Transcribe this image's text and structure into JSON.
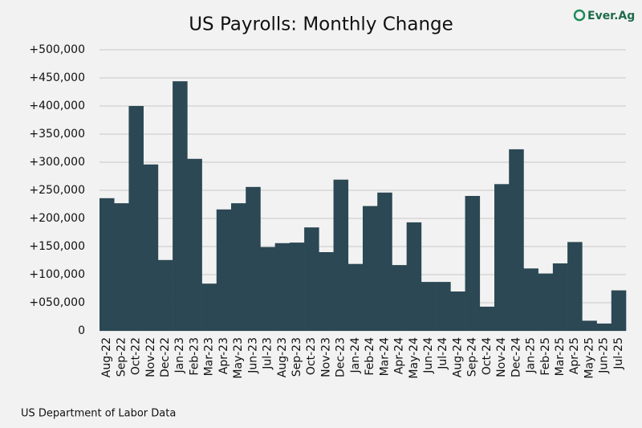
{
  "chart_data": {
    "type": "bar",
    "title": "US Payrolls: Monthly Change",
    "source": "US Department of Labor Data",
    "logo": "Ever.Ag",
    "categories": [
      "Aug-22",
      "Sep-22",
      "Oct-22",
      "Nov-22",
      "Dec-22",
      "Jan-23",
      "Feb-23",
      "Mar-23",
      "Apr-23",
      "May-23",
      "Jun-23",
      "Jul-23",
      "Aug-23",
      "Sep-23",
      "Oct-23",
      "Nov-23",
      "Dec-23",
      "Jan-24",
      "Feb-24",
      "Mar-24",
      "Apr-24",
      "May-24",
      "Jun-24",
      "Jul-24",
      "Aug-24",
      "Sep-24",
      "Oct-24",
      "Nov-24",
      "Dec-24",
      "Jan-25",
      "Feb-25",
      "Mar-25",
      "Apr-25",
      "May-25",
      "Jun-25",
      "Jul-25"
    ],
    "values": [
      236000,
      227000,
      400000,
      296000,
      126000,
      444000,
      306000,
      84000,
      216000,
      227000,
      256000,
      149000,
      156000,
      157000,
      184000,
      140000,
      269000,
      119000,
      222000,
      246000,
      117000,
      193000,
      87000,
      87000,
      70000,
      240000,
      43000,
      261000,
      323000,
      111000,
      102000,
      120000,
      158000,
      18000,
      13000,
      72000
    ],
    "color": "#2b4854",
    "ylim": [
      0,
      500000
    ],
    "yticks": [
      0,
      {
        "value": 50000,
        "label": "+050,000"
      },
      {
        "value": 100000,
        "label": "+100,000"
      },
      {
        "value": 150000,
        "label": "+150,000"
      },
      {
        "value": 200000,
        "label": "+200,000"
      },
      {
        "value": 250000,
        "label": "+250,000"
      },
      {
        "value": 300000,
        "label": "+300,000"
      },
      {
        "value": 350000,
        "label": "+350,000"
      },
      {
        "value": 400000,
        "label": "+400,000"
      },
      {
        "value": 450000,
        "label": "+450,000"
      },
      {
        "value": 500000,
        "label": "+500,000"
      }
    ],
    "grid": true
  }
}
